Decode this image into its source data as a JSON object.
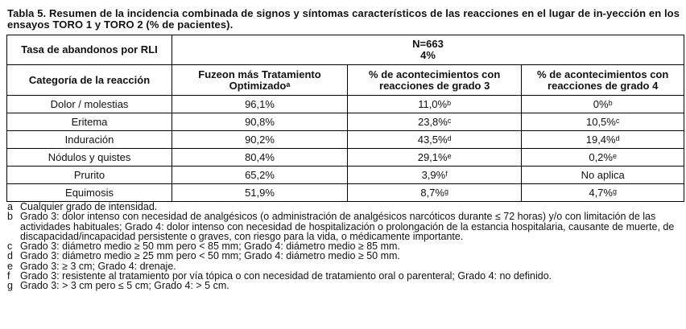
{
  "caption": "Tabla 5. Resumen de la incidencia combinada de signos y síntomas característicos de las reacciones en el lugar de in-yección en los ensayos TORO 1 y TORO 2 (% de pacientes).",
  "top_row": {
    "label": "Tasa de abandonos por RLI",
    "n": "N=663",
    "rate": "4%"
  },
  "headers": {
    "category": "Categoría de la reacción",
    "fuzeon": "Fuzeon más Tratamiento Optimizado",
    "fuzeon_sup": "a",
    "grade3": "% de acontecimientos con reacciones de grado 3",
    "grade4": "% de acontecimientos con reacciones de grado 4"
  },
  "rows": [
    {
      "category": "Dolor / molestias",
      "fuzeon": "96,1%",
      "g3": "11,0%",
      "g3_sup": "b",
      "g4": "0%",
      "g4_sup": "b"
    },
    {
      "category": "Eritema",
      "fuzeon": "90,8%",
      "g3": "23,8%",
      "g3_sup": "c",
      "g4": "10,5%",
      "g4_sup": "c"
    },
    {
      "category": "Induración",
      "fuzeon": "90,2%",
      "g3": "43,5%",
      "g3_sup": "d",
      "g4": "19,4%",
      "g4_sup": "d"
    },
    {
      "category": "Nódulos y quistes",
      "fuzeon": "80,4%",
      "g3": "29,1%",
      "g3_sup": "e",
      "g4": "0,2%",
      "g4_sup": "e"
    },
    {
      "category": "Prurito",
      "fuzeon": "65,2%",
      "g3": "3,9%",
      "g3_sup": "f",
      "g4": "No aplica",
      "g4_sup": ""
    },
    {
      "category": "Equimosis",
      "fuzeon": "51,9%",
      "g3": "8,7%",
      "g3_sup": "g",
      "g4": "4,7%",
      "g4_sup": "g"
    }
  ],
  "footnotes": [
    {
      "mark": "a",
      "text": "Cualquier grado de intensidad."
    },
    {
      "mark": "b",
      "text": "Grado 3: dolor intenso con necesidad de analgésicos (o administración de analgésicos narcóticos durante ≤ 72 horas) y/o con limitación de las actividades habituales; Grado 4: dolor intenso con necesidad de hospitalización o prolongación de la estancia hospitalaria, causante de muerte, de discapacidad/incapacidad persistente o graves, con riesgo para la vida, o médicamente importante."
    },
    {
      "mark": "c",
      "text": "Grado 3: diámetro medio ≥ 50 mm pero < 85 mm; Grado 4: diámetro medio ≥ 85 mm."
    },
    {
      "mark": "d",
      "text": "Grado 3: diámetro medio ≥ 25 mm pero < 50 mm; Grado 4: diámetro medio ≥ 50 mm."
    },
    {
      "mark": "e",
      "text": "Grado 3: ≥ 3 cm; Grado 4: drenaje."
    },
    {
      "mark": "f",
      "text": "Grado 3: resistente al tratamiento por vía tópica o con necesidad de tratamiento oral o parenteral; Grado 4: no definido."
    },
    {
      "mark": "g",
      "text": "Grado 3: > 3 cm pero ≤ 5 cm; Grado 4: > 5 cm."
    }
  ]
}
